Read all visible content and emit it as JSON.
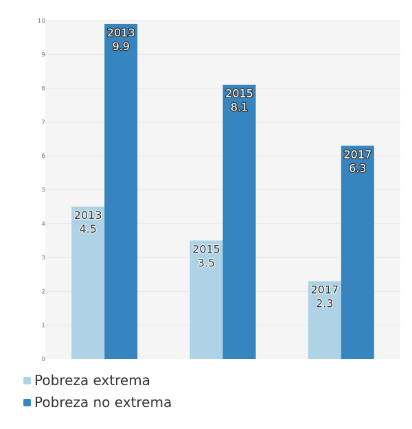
{
  "chart_data": {
    "type": "bar",
    "categories": [
      "2013",
      "2015",
      "2017"
    ],
    "series": [
      {
        "name": "Pobreza extrema",
        "color": "#aed2e6",
        "values": [
          4.5,
          3.5,
          2.3
        ]
      },
      {
        "name": "Pobreza no extrema",
        "color": "#3785bf",
        "values": [
          9.9,
          8.1,
          6.3
        ]
      }
    ],
    "ylim": [
      0,
      10
    ],
    "yticks": [
      "0",
      "1",
      "2",
      "3",
      "4",
      "5",
      "6",
      "7",
      "8",
      "9",
      "10"
    ],
    "grid": true,
    "legend_position": "bottom-left",
    "plot_background": "#f5f5f5"
  }
}
